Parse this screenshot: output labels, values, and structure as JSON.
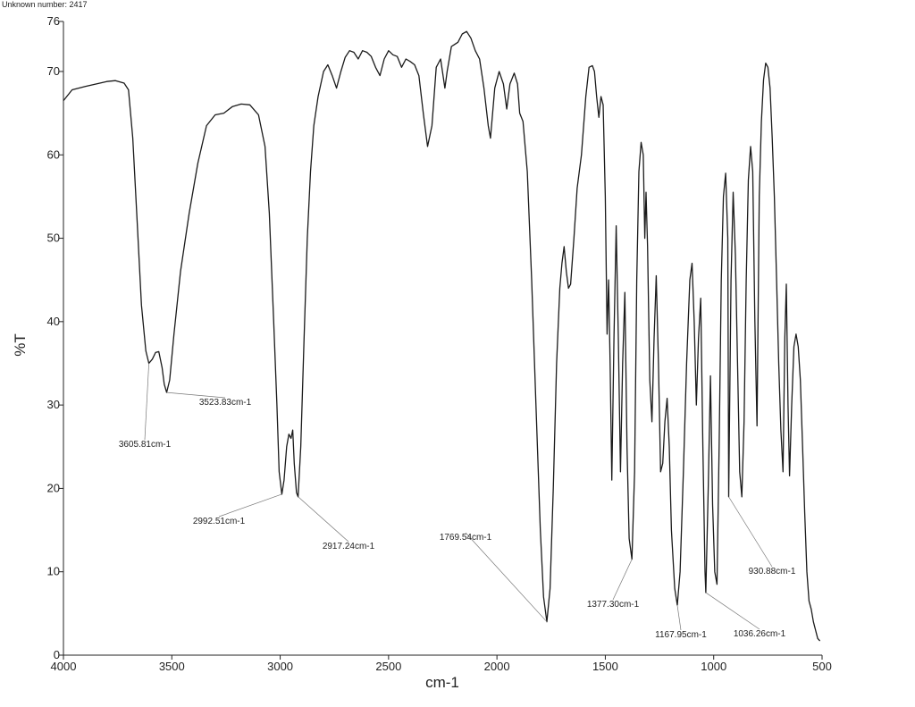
{
  "header": {
    "text": "Unknown number: 2417"
  },
  "chart_data": {
    "type": "line",
    "title": "",
    "xlabel": "cm-1",
    "ylabel": "%T",
    "xlim": [
      4000,
      500
    ],
    "ylim": [
      0,
      76
    ],
    "x_ticks": [
      4000,
      3500,
      3000,
      2500,
      2000,
      1500,
      1000,
      500
    ],
    "y_ticks": [
      0,
      10,
      20,
      30,
      40,
      50,
      60,
      70,
      76
    ],
    "grid": false,
    "series": [
      {
        "color": "#1a1a1a",
        "points": [
          [
            4000,
            66.5
          ],
          [
            3960,
            67.8
          ],
          [
            3900,
            68.2
          ],
          [
            3850,
            68.5
          ],
          [
            3800,
            68.8
          ],
          [
            3760,
            68.9
          ],
          [
            3720,
            68.6
          ],
          [
            3700,
            67.8
          ],
          [
            3680,
            62
          ],
          [
            3660,
            52
          ],
          [
            3640,
            42
          ],
          [
            3620,
            36.5
          ],
          [
            3605.81,
            35
          ],
          [
            3590,
            35.5
          ],
          [
            3575,
            36.3
          ],
          [
            3560,
            36.4
          ],
          [
            3545,
            34.5
          ],
          [
            3535,
            32.5
          ],
          [
            3523.83,
            31.5
          ],
          [
            3510,
            33
          ],
          [
            3490,
            38.5
          ],
          [
            3460,
            46
          ],
          [
            3420,
            53
          ],
          [
            3380,
            59
          ],
          [
            3340,
            63.5
          ],
          [
            3300,
            64.8
          ],
          [
            3260,
            65
          ],
          [
            3220,
            65.8
          ],
          [
            3180,
            66.1
          ],
          [
            3140,
            66
          ],
          [
            3100,
            64.8
          ],
          [
            3070,
            61
          ],
          [
            3050,
            53
          ],
          [
            3030,
            40
          ],
          [
            3015,
            30
          ],
          [
            3005,
            22
          ],
          [
            2992.51,
            19.3
          ],
          [
            2982,
            21
          ],
          [
            2970,
            25
          ],
          [
            2960,
            26.5
          ],
          [
            2950,
            26
          ],
          [
            2942,
            27
          ],
          [
            2935,
            23
          ],
          [
            2925,
            19.5
          ],
          [
            2917.24,
            19
          ],
          [
            2905,
            25
          ],
          [
            2890,
            38
          ],
          [
            2875,
            50
          ],
          [
            2860,
            58
          ],
          [
            2845,
            63.5
          ],
          [
            2825,
            67
          ],
          [
            2800,
            70
          ],
          [
            2780,
            70.8
          ],
          [
            2760,
            69.5
          ],
          [
            2740,
            68
          ],
          [
            2720,
            70
          ],
          [
            2700,
            71.7
          ],
          [
            2680,
            72.5
          ],
          [
            2660,
            72.3
          ],
          [
            2640,
            71.5
          ],
          [
            2620,
            72.5
          ],
          [
            2600,
            72.3
          ],
          [
            2580,
            71.8
          ],
          [
            2560,
            70.5
          ],
          [
            2540,
            69.5
          ],
          [
            2520,
            71.5
          ],
          [
            2500,
            72.5
          ],
          [
            2480,
            72
          ],
          [
            2460,
            71.8
          ],
          [
            2440,
            70.5
          ],
          [
            2420,
            71.5
          ],
          [
            2400,
            71.2
          ],
          [
            2380,
            70.8
          ],
          [
            2360,
            69.5
          ],
          [
            2340,
            65
          ],
          [
            2320,
            61
          ],
          [
            2300,
            63.5
          ],
          [
            2280,
            70.5
          ],
          [
            2260,
            71.5
          ],
          [
            2240,
            68
          ],
          [
            2230,
            70
          ],
          [
            2210,
            73
          ],
          [
            2180,
            73.5
          ],
          [
            2160,
            74.5
          ],
          [
            2140,
            74.8
          ],
          [
            2120,
            74
          ],
          [
            2100,
            72.5
          ],
          [
            2080,
            71.5
          ],
          [
            2060,
            68
          ],
          [
            2040,
            63.5
          ],
          [
            2030,
            62
          ],
          [
            2010,
            68
          ],
          [
            1990,
            70
          ],
          [
            1970,
            68.5
          ],
          [
            1955,
            65.5
          ],
          [
            1940,
            68.5
          ],
          [
            1920,
            69.8
          ],
          [
            1905,
            68.5
          ],
          [
            1895,
            65
          ],
          [
            1880,
            64
          ],
          [
            1860,
            58
          ],
          [
            1840,
            45
          ],
          [
            1820,
            30
          ],
          [
            1800,
            15
          ],
          [
            1785,
            7
          ],
          [
            1769.54,
            4
          ],
          [
            1755,
            8
          ],
          [
            1740,
            20
          ],
          [
            1725,
            35
          ],
          [
            1710,
            44
          ],
          [
            1700,
            47
          ],
          [
            1690,
            49
          ],
          [
            1680,
            46
          ],
          [
            1670,
            44
          ],
          [
            1660,
            44.5
          ],
          [
            1645,
            50
          ],
          [
            1630,
            56
          ],
          [
            1610,
            60
          ],
          [
            1590,
            67
          ],
          [
            1575,
            70.5
          ],
          [
            1560,
            70.7
          ],
          [
            1550,
            70
          ],
          [
            1540,
            67
          ],
          [
            1530,
            64.5
          ],
          [
            1520,
            67
          ],
          [
            1510,
            66
          ],
          [
            1500,
            55
          ],
          [
            1492,
            38.5
          ],
          [
            1485,
            45
          ],
          [
            1478,
            35
          ],
          [
            1470,
            21
          ],
          [
            1460,
            38
          ],
          [
            1450,
            51.5
          ],
          [
            1440,
            38
          ],
          [
            1430,
            22
          ],
          [
            1420,
            35
          ],
          [
            1410,
            43.5
          ],
          [
            1400,
            25
          ],
          [
            1390,
            14
          ],
          [
            1377.3,
            11.5
          ],
          [
            1365,
            22
          ],
          [
            1355,
            45
          ],
          [
            1345,
            58
          ],
          [
            1335,
            61.5
          ],
          [
            1325,
            60
          ],
          [
            1318,
            50
          ],
          [
            1312,
            55.5
          ],
          [
            1305,
            49
          ],
          [
            1295,
            33
          ],
          [
            1285,
            28
          ],
          [
            1275,
            38
          ],
          [
            1265,
            45.5
          ],
          [
            1255,
            35
          ],
          [
            1245,
            22
          ],
          [
            1235,
            23
          ],
          [
            1225,
            28
          ],
          [
            1215,
            30.8
          ],
          [
            1205,
            25
          ],
          [
            1195,
            15
          ],
          [
            1180,
            8
          ],
          [
            1167.95,
            6
          ],
          [
            1155,
            10
          ],
          [
            1140,
            22
          ],
          [
            1125,
            35
          ],
          [
            1110,
            45
          ],
          [
            1100,
            47
          ],
          [
            1090,
            40
          ],
          [
            1080,
            30
          ],
          [
            1070,
            38
          ],
          [
            1060,
            42.8
          ],
          [
            1050,
            25
          ],
          [
            1040,
            10
          ],
          [
            1036.26,
            7.5
          ],
          [
            1025,
            20
          ],
          [
            1015,
            33.5
          ],
          [
            1005,
            18
          ],
          [
            995,
            10
          ],
          [
            985,
            8.5
          ],
          [
            975,
            25
          ],
          [
            965,
            45
          ],
          [
            955,
            55
          ],
          [
            945,
            57.8
          ],
          [
            935,
            50
          ],
          [
            930.88,
            19
          ],
          [
            920,
            45
          ],
          [
            910,
            55.5
          ],
          [
            900,
            48
          ],
          [
            890,
            35
          ],
          [
            880,
            22
          ],
          [
            870,
            19
          ],
          [
            860,
            28
          ],
          [
            850,
            45
          ],
          [
            840,
            57
          ],
          [
            830,
            61
          ],
          [
            820,
            58
          ],
          [
            810,
            40
          ],
          [
            800,
            27.5
          ],
          [
            790,
            55
          ],
          [
            780,
            64
          ],
          [
            770,
            69
          ],
          [
            760,
            71
          ],
          [
            750,
            70.5
          ],
          [
            740,
            68
          ],
          [
            730,
            62
          ],
          [
            720,
            55
          ],
          [
            710,
            45
          ],
          [
            700,
            35
          ],
          [
            690,
            27
          ],
          [
            680,
            22
          ],
          [
            672,
            38
          ],
          [
            665,
            44.5
          ],
          [
            657,
            30
          ],
          [
            650,
            21.5
          ],
          [
            640,
            30
          ],
          [
            630,
            37
          ],
          [
            620,
            38.5
          ],
          [
            610,
            37
          ],
          [
            600,
            33
          ],
          [
            590,
            25
          ],
          [
            580,
            17
          ],
          [
            570,
            10
          ],
          [
            560,
            6.5
          ],
          [
            550,
            5.5
          ],
          [
            540,
            4
          ],
          [
            530,
            3
          ],
          [
            520,
            2
          ],
          [
            510,
            1.7
          ]
        ]
      }
    ],
    "annotations": [
      {
        "text": "3605.81cm-1",
        "x": 3605.81,
        "y": 35
      },
      {
        "text": "3523.83cm-1",
        "x": 3523.83,
        "y": 31.5
      },
      {
        "text": "2992.51cm-1",
        "x": 2992.51,
        "y": 19.3
      },
      {
        "text": "2917.24cm-1",
        "x": 2917.24,
        "y": 19
      },
      {
        "text": "1769.54cm-1",
        "x": 1769.54,
        "y": 4
      },
      {
        "text": "1377.30cm-1",
        "x": 1377.3,
        "y": 11.5
      },
      {
        "text": "1167.95cm-1",
        "x": 1167.95,
        "y": 6
      },
      {
        "text": "1036.26cm-1",
        "x": 1036.26,
        "y": 7.5
      },
      {
        "text": "930.88cm-1",
        "x": 930.88,
        "y": 19
      }
    ]
  }
}
